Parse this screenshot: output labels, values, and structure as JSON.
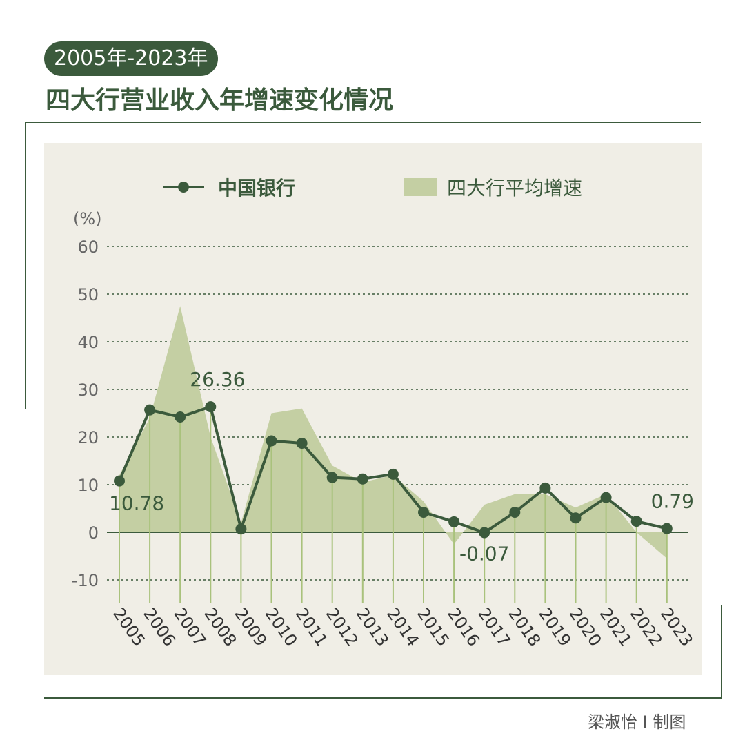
{
  "header": {
    "period": "2005年-2023年",
    "title": "四大行营业收入年增速变化情况"
  },
  "credit": "梁淑怡 I 制图",
  "colors": {
    "dark_green": "#3b5a3c",
    "area_green": "#c4cfa3",
    "stem_green": "#a9c27c",
    "panel_bg": "#f0eee6",
    "grid": "#3b5a3c",
    "axis_text": "#666666"
  },
  "chart_data": {
    "type": "line",
    "unit_label": "(%)",
    "ylim": [
      -10,
      60
    ],
    "yticks": [
      -10,
      0,
      10,
      20,
      30,
      40,
      50,
      60
    ],
    "grid": true,
    "legend_position": "top",
    "x": [
      "2005",
      "2006",
      "2007",
      "2008",
      "2009",
      "2010",
      "2011",
      "2012",
      "2013",
      "2014",
      "2015",
      "2016",
      "2017",
      "2018",
      "2019",
      "2020",
      "2021",
      "2022",
      "2023"
    ],
    "series": [
      {
        "name": "中国银行",
        "type": "line",
        "values": [
          10.78,
          25.7,
          24.2,
          26.36,
          0.7,
          19.2,
          18.7,
          11.5,
          11.2,
          12.2,
          4.2,
          2.2,
          -0.07,
          4.2,
          9.3,
          3.0,
          7.3,
          2.3,
          0.79
        ]
      },
      {
        "name": "四大行平均增速",
        "type": "area",
        "values": [
          12.0,
          24.0,
          47.5,
          20.0,
          2.0,
          25.0,
          26.0,
          14.0,
          10.5,
          12.0,
          6.5,
          -2.5,
          5.8,
          8.0,
          8.0,
          5.2,
          8.0,
          0.0,
          -5.5
        ]
      }
    ],
    "annotations": [
      {
        "year": "2005",
        "text": "10.78"
      },
      {
        "year": "2008",
        "text": "26.36"
      },
      {
        "year": "2017",
        "text": "-0.07"
      },
      {
        "year": "2023",
        "text": "0.79"
      }
    ]
  }
}
